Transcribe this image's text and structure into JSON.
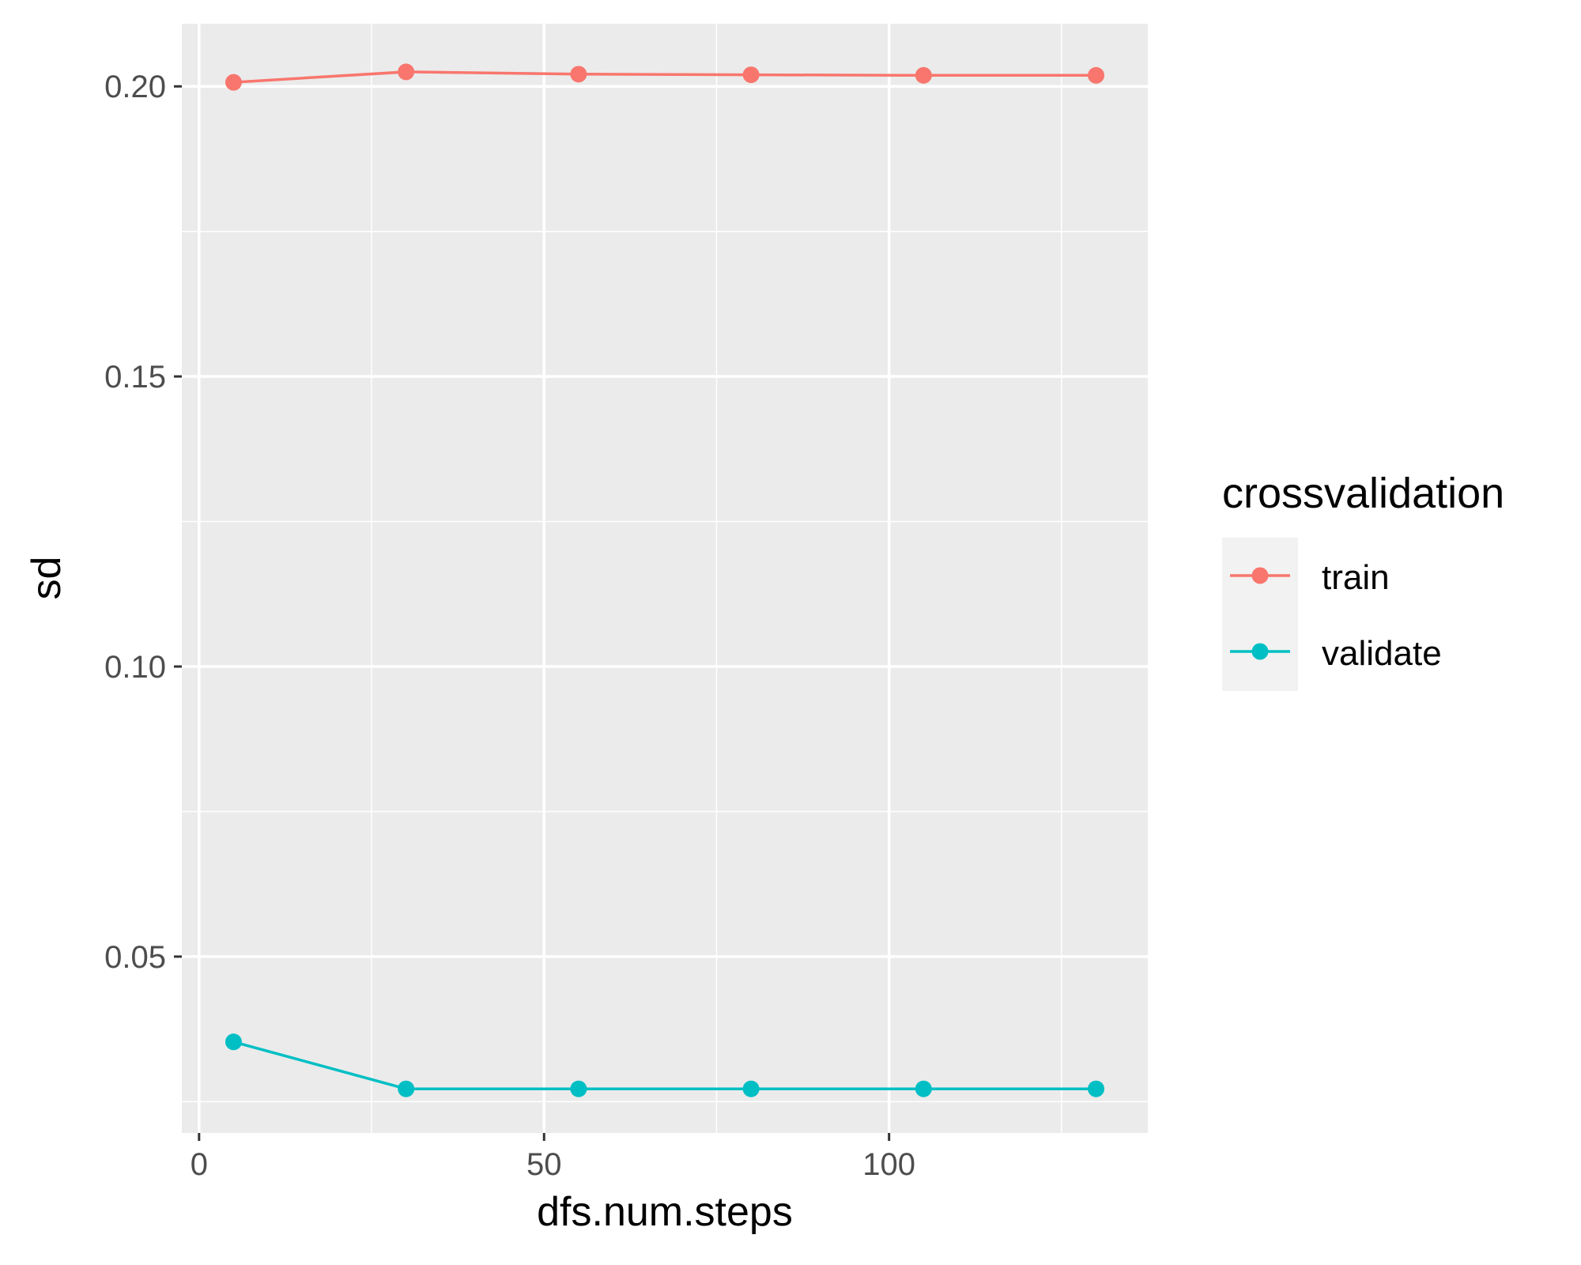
{
  "chart_data": {
    "type": "line",
    "title": "",
    "xlabel": "dfs.num.steps",
    "ylabel": "sd",
    "xlim": [
      -2.5,
      137.5
    ],
    "ylim": [
      0.0196,
      0.2108
    ],
    "x_ticks": [
      0,
      50,
      100
    ],
    "x_tick_labels": [
      "0",
      "50",
      "100"
    ],
    "x_minor_ticks": [
      25,
      75,
      125
    ],
    "y_ticks": [
      0.05,
      0.1,
      0.15,
      0.2
    ],
    "y_tick_labels": [
      "0.05",
      "0.10",
      "0.15",
      "0.20"
    ],
    "y_minor_ticks": [
      0.025,
      0.075,
      0.125,
      0.175
    ],
    "grid": true,
    "legend": {
      "title": "crossvalidation",
      "placement": "right"
    },
    "x": [
      5,
      30,
      55,
      80,
      105,
      130
    ],
    "series": [
      {
        "name": "train",
        "color": "#F8766D",
        "values": [
          0.2007,
          0.2025,
          0.2021,
          0.202,
          0.2019,
          0.2019
        ]
      },
      {
        "name": "validate",
        "color": "#00BFC4",
        "values": [
          0.0353,
          0.0272,
          0.0272,
          0.0272,
          0.0272,
          0.0272
        ]
      }
    ]
  }
}
